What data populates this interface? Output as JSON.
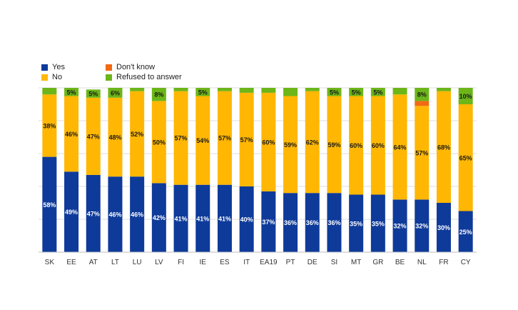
{
  "chart_data": {
    "type": "bar",
    "stacked": true,
    "categories": [
      "SK",
      "EE",
      "AT",
      "LT",
      "LU",
      "LV",
      "FI",
      "IE",
      "ES",
      "IT",
      "EA19",
      "PT",
      "DE",
      "SI",
      "MT",
      "GR",
      "BE",
      "NL",
      "FR",
      "CY"
    ],
    "series": [
      {
        "name": "Yes",
        "color": "#0e3a9a",
        "values": [
          58,
          49,
          47,
          46,
          46,
          42,
          41,
          41,
          41,
          40,
          37,
          36,
          36,
          36,
          35,
          35,
          32,
          32,
          30,
          25
        ],
        "labels": [
          "58%",
          "49%",
          "47%",
          "46%",
          "46%",
          "42%",
          "41%",
          "41%",
          "41%",
          "40%",
          "37%",
          "36%",
          "36%",
          "36%",
          "35%",
          "35%",
          "32%",
          "32%",
          "30%",
          "25%"
        ]
      },
      {
        "name": "No",
        "color": "#ffb703",
        "values": [
          38,
          46,
          47,
          48,
          52,
          50,
          57,
          54,
          57,
          57,
          60,
          59,
          62,
          59,
          60,
          60,
          64,
          57,
          68,
          65
        ],
        "labels": [
          "38%",
          "46%",
          "47%",
          "48%",
          "52%",
          "50%",
          "57%",
          "54%",
          "57%",
          "57%",
          "60%",
          "59%",
          "62%",
          "59%",
          "60%",
          "60%",
          "64%",
          "57%",
          "68%",
          "65%"
        ]
      },
      {
        "name": "Don't know",
        "color": "#f26a12",
        "values": [
          0,
          0,
          0,
          0,
          0,
          0,
          0,
          0,
          0,
          0,
          0,
          0,
          0,
          0,
          0,
          0,
          0,
          3,
          0,
          0
        ],
        "labels": [
          "",
          "",
          "",
          "",
          "",
          "",
          "",
          "",
          "",
          "",
          "",
          "",
          "",
          "",
          "",
          "",
          "",
          "",
          "",
          ""
        ]
      },
      {
        "name": "Refused to answer",
        "color": "#6cb619",
        "values": [
          4,
          5,
          5,
          6,
          2,
          8,
          2,
          5,
          2,
          3,
          3,
          5,
          2,
          5,
          5,
          5,
          4,
          8,
          2,
          10
        ],
        "labels": [
          "",
          "5%",
          "5%",
          "6%",
          "",
          "8%",
          "",
          "5%",
          "",
          "",
          "",
          "",
          "",
          "5%",
          "5%",
          "5%",
          "",
          "8%",
          "",
          "10%"
        ]
      }
    ],
    "ylim": [
      0,
      100
    ],
    "grid": true,
    "legend_position": "top-left"
  }
}
